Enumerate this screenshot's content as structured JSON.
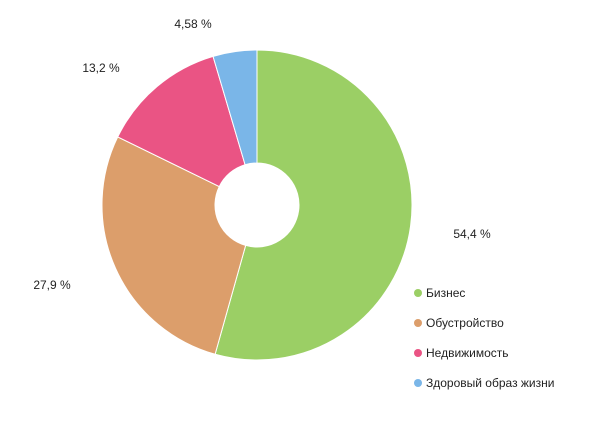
{
  "chart_data": {
    "type": "pie",
    "donut": true,
    "slices": [
      {
        "label": "Бизнес",
        "value": 54.4,
        "display": "54,4 %",
        "color": "#9bcf65"
      },
      {
        "label": "Обустройство",
        "value": 27.9,
        "display": "27,9 %",
        "color": "#dc9e6b"
      },
      {
        "label": "Недвижимость",
        "value": 13.2,
        "display": "13,2 %",
        "color": "#ea5484"
      },
      {
        "label": "Здоровый образ жизни",
        "value": 4.58,
        "display": "4,58 %",
        "color": "#7ab6e8"
      }
    ],
    "legend_position": "bottom-right"
  }
}
